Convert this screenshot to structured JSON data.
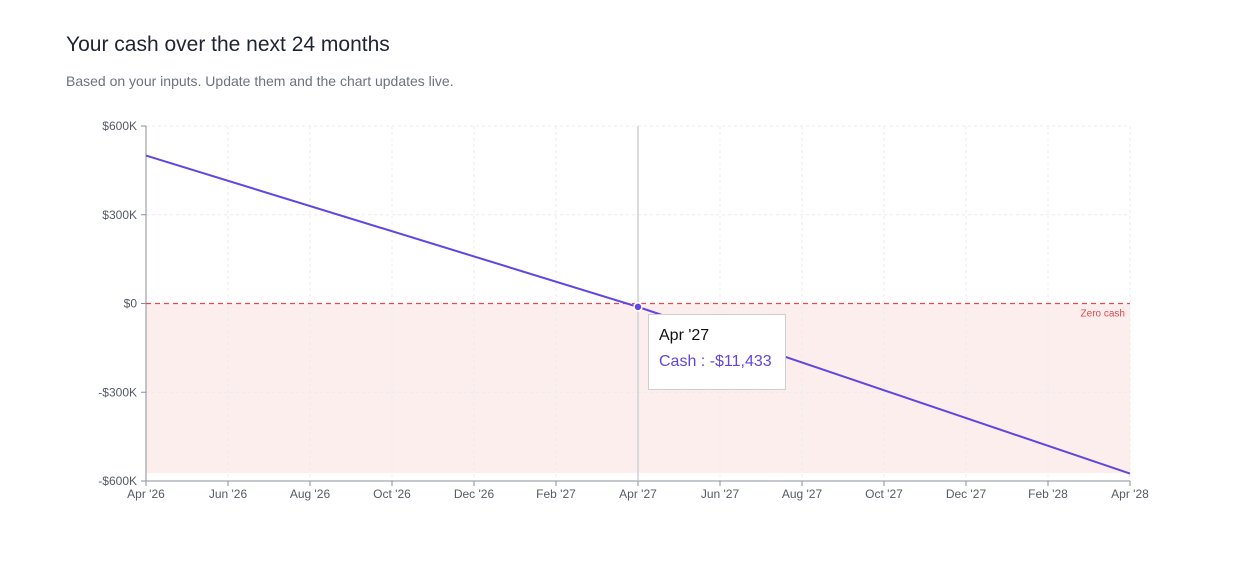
{
  "header": {
    "title": "Your cash over the next 24 months",
    "subtitle": "Based on your inputs. Update them and the chart updates live."
  },
  "colors": {
    "line": "#6146e3",
    "zero_line": "#e5484d",
    "negative_area": "#fdeeee"
  },
  "chart_data": {
    "type": "line",
    "title": "",
    "xlabel": "",
    "ylabel": "",
    "x_ticks": [
      "Apr '26",
      "Jun '26",
      "Aug '26",
      "Oct '26",
      "Dec '26",
      "Feb '27",
      "Apr '27",
      "Jun '27",
      "Aug '27",
      "Oct '27",
      "Dec '27",
      "Feb '28",
      "Apr '28"
    ],
    "y_ticks": [
      600000,
      300000,
      0,
      -300000,
      -600000
    ],
    "y_tick_labels": [
      "$600K",
      "$300K",
      "$0",
      "-$300K",
      "-$600K"
    ],
    "ylim": [
      -600000,
      600000
    ],
    "xlim_months": [
      0,
      24
    ],
    "grid": true,
    "series": [
      {
        "name": "Cash",
        "points": [
          {
            "month": "Apr '26",
            "value": 500000
          },
          {
            "month": "Apr '27",
            "value": -11433
          },
          {
            "month": "Apr '28",
            "value": -575000
          }
        ]
      }
    ],
    "reference_line": {
      "value": 0,
      "label": "Zero cash"
    },
    "tooltip": {
      "label": "Apr '27",
      "value_text": "Cash : -$11,433",
      "month": "Apr '27",
      "value": -11433
    }
  }
}
